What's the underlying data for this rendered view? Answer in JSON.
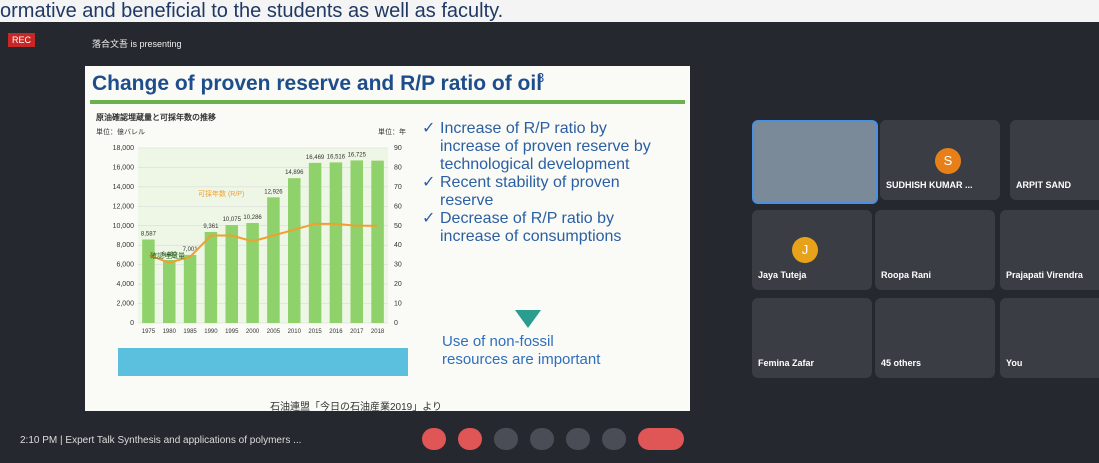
{
  "caption": "ormative and beneficial to the students as well as faculty.",
  "meet": {
    "rec": "REC",
    "presenter": "落合文吾 is presenting",
    "footer": "2:10 PM  |  Expert Talk Synthesis and applications of polymers ..."
  },
  "slide": {
    "title": "Change of proven reserve and R/P ratio of oil",
    "page": "3",
    "bullets": [
      "Increase of R/P ratio by increase of proven reserve by technological development",
      "Recent stability of proven reserve",
      "Decrease of R/P ratio by increase of consumptions"
    ],
    "conclusion": "Use of non-fossil resources are important",
    "source": "石油連盟「今日の石油産業2019」より",
    "chart": {
      "type": "bar",
      "title": "原油確認埋蔵量と可採年数の推移",
      "y_unit": "単位：億バレル",
      "y2_unit": "単位：年",
      "categories": [
        "1975",
        "1980",
        "1985",
        "1990",
        "1995",
        "2000",
        "2005",
        "2010",
        "2015",
        "2016",
        "2017",
        "2018"
      ],
      "series": [
        {
          "name": "確認埋蔵量",
          "color": "#8fd16a",
          "values": [
            8587,
            6480,
            7001,
            9361,
            10075,
            10286,
            12926,
            14896,
            16469,
            16516,
            16725,
            16700
          ],
          "value_labels": [
            "8,587",
            "6,480",
            "7,001",
            "9,361",
            "10,075",
            "10,286",
            "12,926",
            "14,896",
            "16,469",
            "16,516",
            "16,725",
            null
          ]
        },
        {
          "name": "可採年数 (R/P)",
          "color": "#f0a030",
          "axis": "y2",
          "values": [
            35,
            31,
            34,
            45,
            45,
            42,
            45,
            48,
            51,
            51,
            50,
            50
          ]
        }
      ],
      "ylim": [
        0,
        18000
      ],
      "yticks": [
        0,
        {
          "value": 2000,
          "label": "2,000"
        },
        {
          "value": 4000,
          "label": "4,000"
        },
        {
          "value": 6000,
          "label": "6,000"
        },
        {
          "value": 8000,
          "label": "8,000"
        },
        {
          "value": 10000,
          "label": "10,000"
        },
        {
          "value": 12000,
          "label": "12,000"
        },
        {
          "value": 14000,
          "label": "14,000"
        },
        {
          "value": 16000,
          "label": "16,000"
        },
        {
          "value": 18000,
          "label": "18,000"
        }
      ],
      "y2lim": [
        0,
        90
      ],
      "y2ticks": [
        0,
        10,
        20,
        30,
        40,
        50,
        60,
        70,
        80,
        90
      ]
    }
  },
  "participants": [
    "SUDHISH KUMAR ...",
    "ARPIT SAND",
    "Jaya Tuteja",
    "Roopa Rani",
    "Prajapati Virendra",
    "Femina Zafar",
    "45 others",
    "You"
  ],
  "avatars": {
    "s": "S",
    "j": "J"
  }
}
